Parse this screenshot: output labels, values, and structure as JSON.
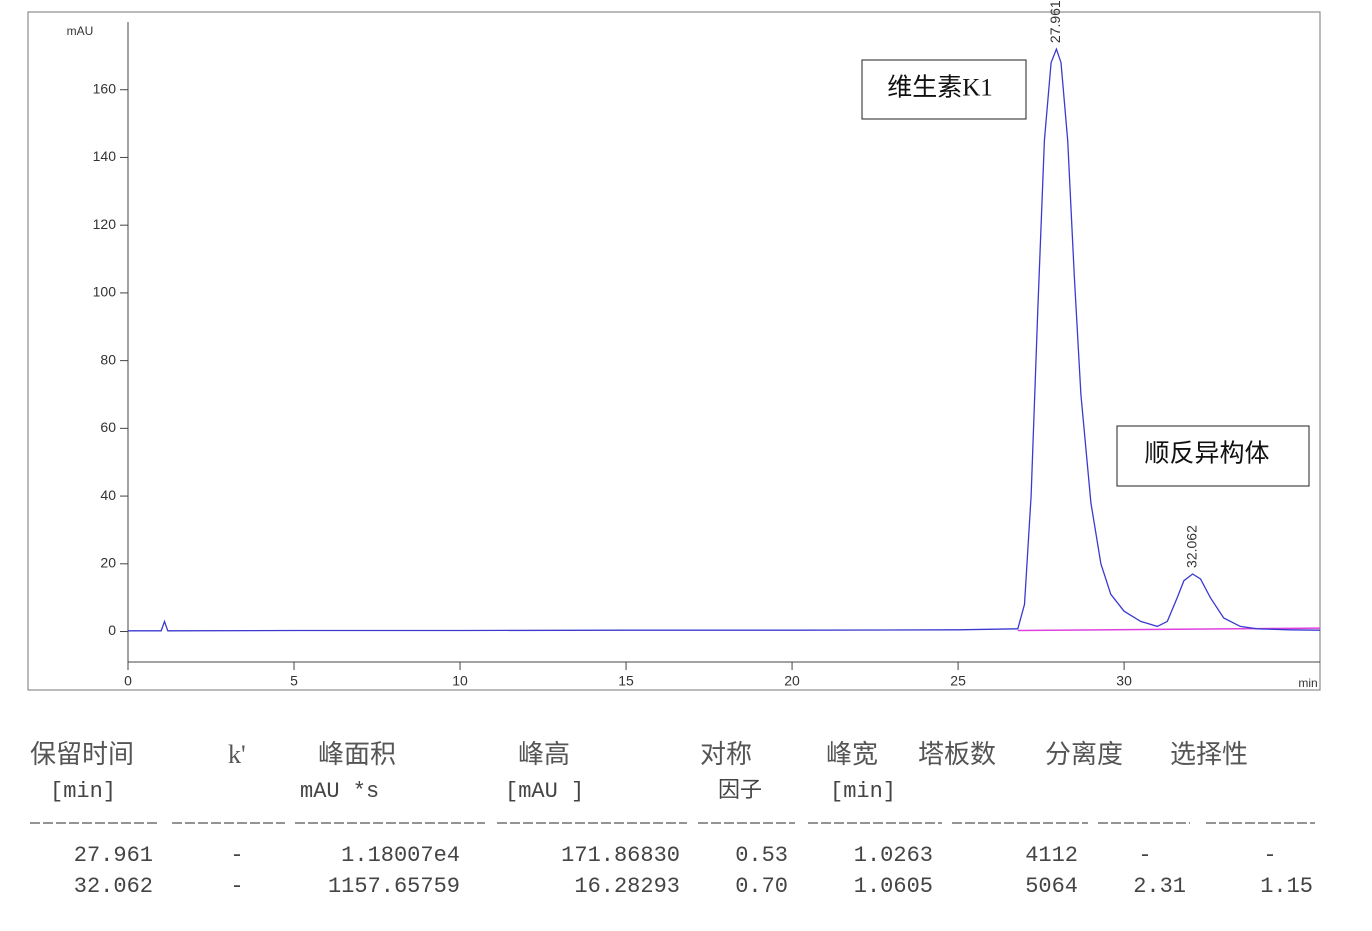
{
  "chart_data": {
    "type": "line",
    "y_unit": "mAU",
    "x_unit": "min",
    "x": [
      0,
      1.0,
      1.1,
      1.2,
      5,
      10,
      15,
      20,
      25,
      26.8,
      27.0,
      27.2,
      27.4,
      27.6,
      27.8,
      27.961,
      28.1,
      28.3,
      28.5,
      28.7,
      29.0,
      29.3,
      29.6,
      30.0,
      30.5,
      31.0,
      31.3,
      31.6,
      31.8,
      32.062,
      32.3,
      32.6,
      33.0,
      33.5,
      34.0,
      35.0,
      35.9
    ],
    "values": [
      0.2,
      0.2,
      3,
      0.2,
      0.3,
      0.3,
      0.4,
      0.4,
      0.5,
      0.8,
      8,
      40,
      95,
      145,
      168,
      172,
      168,
      145,
      105,
      70,
      38,
      20,
      11,
      6,
      3,
      1.5,
      3,
      10,
      15,
      17,
      15.5,
      10,
      4,
      1.5,
      0.8,
      0.5,
      0.4
    ],
    "color": "#3a3ad0",
    "baseline": {
      "x": [
        26.8,
        35.9
      ],
      "values": [
        0.3,
        1.0
      ],
      "color": "#e040e0"
    },
    "xlim": [
      0,
      35.9
    ],
    "xticks": [
      0,
      5,
      10,
      15,
      20,
      25,
      30
    ],
    "ylim": [
      -9,
      180
    ],
    "yticks": [
      0,
      20,
      40,
      60,
      80,
      100,
      120,
      140,
      160
    ],
    "peak_labels": [
      27.961,
      32.062
    ],
    "callouts": [
      "维生素K1",
      "顺反异构体"
    ]
  },
  "table": {
    "header": [
      [
        "保留时间",
        "[min]"
      ],
      [
        "k'"
      ],
      [
        "峰面积",
        "mAU    *s"
      ],
      [
        "峰高",
        "[mAU    ]"
      ],
      [
        "对称",
        "因子"
      ],
      [
        "峰宽",
        "[min]"
      ],
      [
        "塔板数"
      ],
      [
        "分离度"
      ],
      [
        "选择性"
      ]
    ],
    "rows": [
      [
        "27.961",
        "-",
        "1.18007e4",
        "171.86830",
        "0.53",
        "1.0263",
        "4112",
        "-",
        "-"
      ],
      [
        "32.062",
        "-",
        "1157.65759",
        "16.28293",
        "0.70",
        "1.0605",
        "5064",
        "2.31",
        "1.15"
      ]
    ]
  }
}
